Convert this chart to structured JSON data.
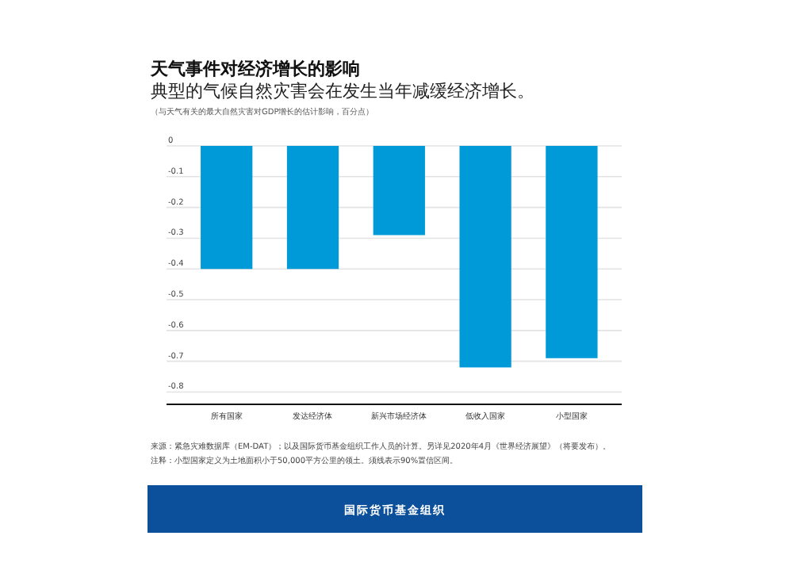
{
  "chart_data": {
    "type": "bar",
    "title": "天气事件对经济增长的影响",
    "subtitle": "典型的气候自然灾害会在发生当年减缓经济增长。",
    "annotations": [
      "（与天气有关的最大自然灾害对GDP增长的估计影响，百分点）",
      "来源：紧急灾难数据库（EM-DAT）；以及国际货币基金组织工作人员的计算。另详见2020年4月《世界经济展望》（将要发布）。",
      "注释：小型国家定义为土地面积小于50,000平方公里的领土。须线表示90%置信区间。",
      "国际货币基金组织"
    ],
    "categories": [
      "所有国家",
      "发达经济体",
      "新兴市场经济体",
      "低收入国家",
      "小型国家"
    ],
    "values": [
      -0.4,
      -0.4,
      -0.29,
      -0.72,
      -0.69
    ],
    "color": "#009ad8",
    "ylim": [
      -0.84,
      0
    ],
    "yticks": [
      0,
      -0.1,
      -0.2,
      -0.3,
      -0.4,
      -0.5,
      -0.6,
      -0.7,
      -0.8
    ],
    "grid": "y"
  }
}
